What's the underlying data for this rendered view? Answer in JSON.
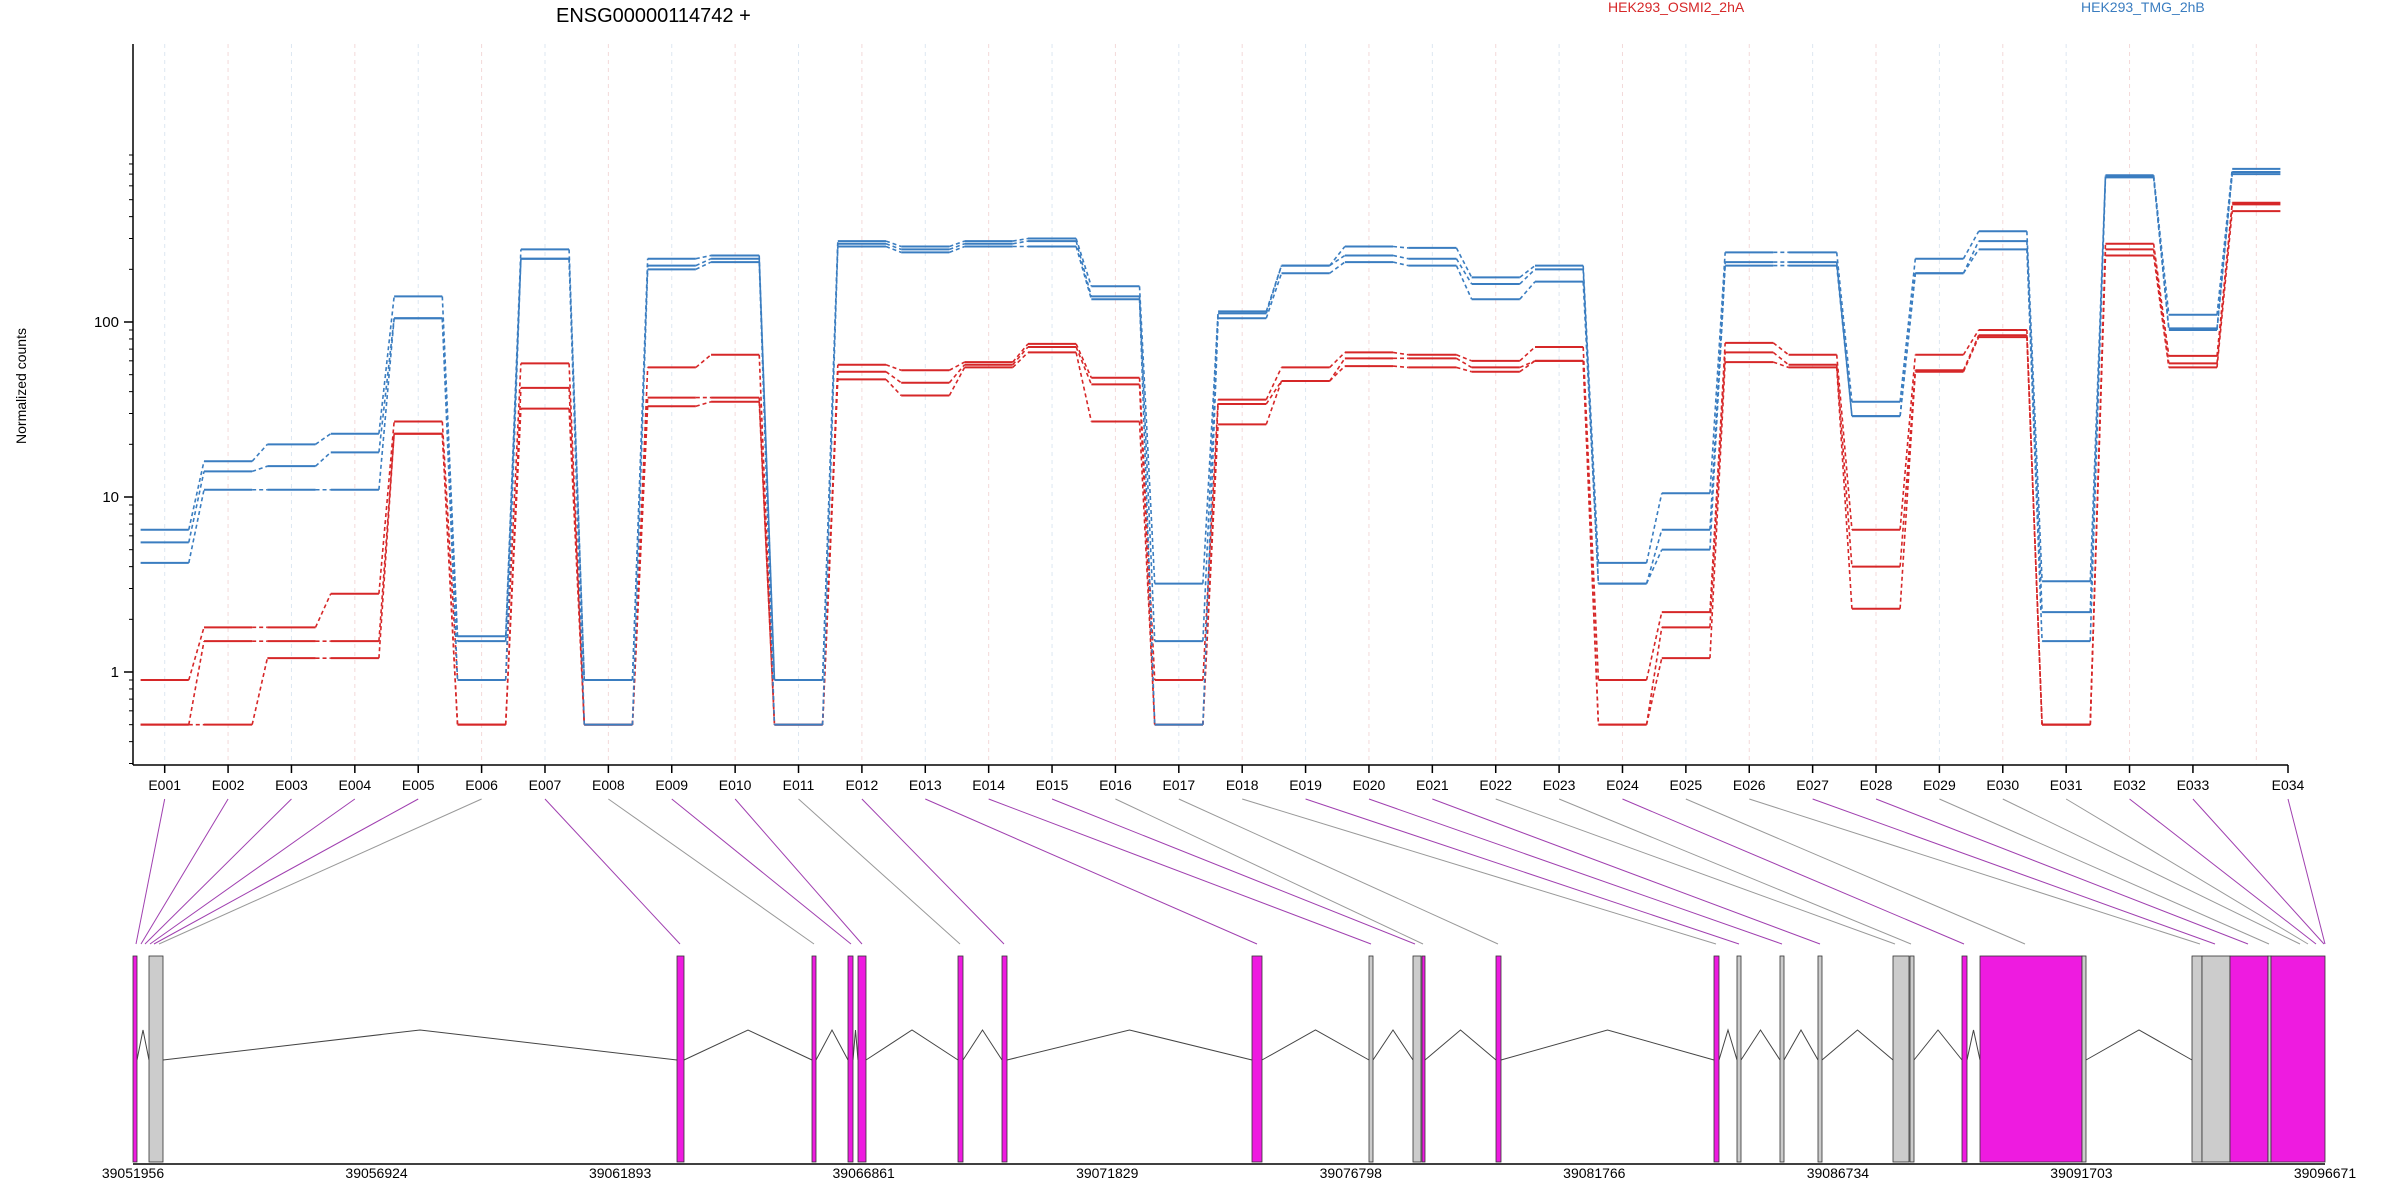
{
  "chart_data": {
    "type": "line",
    "title": "ENSG00000114742 +",
    "ylabel": "Normalized counts",
    "y_scale": "log",
    "y_ticks": [
      {
        "value": 1,
        "label": "1"
      },
      {
        "value": 10,
        "label": "10"
      },
      {
        "value": 100,
        "label": "100"
      }
    ],
    "ylim": [
      0.5,
      1000
    ],
    "categories": [
      "E001",
      "E002",
      "E003",
      "E004",
      "E005",
      "E006",
      "E007",
      "E008",
      "E009",
      "E010",
      "E011",
      "E012",
      "E013",
      "E014",
      "E015",
      "E016",
      "E017",
      "E018",
      "E019",
      "E020",
      "E021",
      "E022",
      "E023",
      "E024",
      "E025",
      "E026",
      "E027",
      "E028",
      "E029",
      "E030",
      "E031",
      "E032",
      "E033",
      "E034"
    ],
    "legend": [
      {
        "name": "HEK293_OSMI2_2hA",
        "color": "#d62728"
      },
      {
        "name": "HEK293_TMG_2hB",
        "color": "#3a7dc0"
      }
    ],
    "series": [
      {
        "group": 0,
        "color": "#d62728",
        "values": [
          0.9,
          1.8,
          1.8,
          2.8,
          27,
          0.9,
          58,
          0.5,
          55,
          65,
          0.5,
          57,
          53,
          59,
          75,
          48,
          0.9,
          36,
          55,
          67,
          65,
          60,
          72,
          0.9,
          2.2,
          76,
          65,
          6.5,
          65,
          90,
          0.5,
          280,
          64,
          470
        ]
      },
      {
        "group": 0,
        "color": "#d62728",
        "values": [
          0.5,
          1.5,
          1.5,
          1.5,
          23,
          0.5,
          42,
          0.5,
          37,
          37,
          0.5,
          52,
          45,
          57,
          72,
          44,
          0.5,
          34,
          46,
          62,
          62,
          55,
          60,
          0.5,
          1.8,
          67,
          57,
          4,
          53,
          84,
          0.5,
          260,
          58,
          480
        ]
      },
      {
        "group": 0,
        "color": "#d62728",
        "values": [
          0.5,
          0.5,
          1.2,
          1.2,
          23,
          0.5,
          32,
          0.5,
          33,
          35,
          0.5,
          47,
          38,
          55,
          67,
          27,
          0.5,
          26,
          46,
          56,
          55,
          52,
          60,
          0.5,
          1.2,
          59,
          55,
          2.3,
          52,
          82,
          0.5,
          240,
          55,
          430
        ]
      },
      {
        "group": 1,
        "color": "#3a7dc0",
        "values": [
          6.5,
          16,
          20,
          23,
          140,
          1.6,
          260,
          0.9,
          230,
          240,
          0.9,
          290,
          270,
          290,
          300,
          160,
          3.2,
          115,
          210,
          270,
          265,
          180,
          210,
          4.2,
          10.5,
          250,
          250,
          35,
          230,
          330,
          3.3,
          690,
          110,
          750
        ]
      },
      {
        "group": 1,
        "color": "#3a7dc0",
        "values": [
          5.5,
          14,
          15,
          18,
          105,
          1.5,
          230,
          0.9,
          210,
          230,
          0.9,
          280,
          260,
          280,
          290,
          140,
          1.5,
          112,
          210,
          240,
          230,
          165,
          200,
          3.2,
          6.5,
          220,
          220,
          29,
          190,
          290,
          2.2,
          680,
          92,
          720
        ]
      },
      {
        "group": 1,
        "color": "#3a7dc0",
        "values": [
          4.2,
          11,
          11,
          11,
          105,
          0.9,
          230,
          0.5,
          200,
          220,
          0.5,
          270,
          250,
          270,
          270,
          135,
          0.5,
          105,
          190,
          220,
          210,
          135,
          170,
          3.2,
          5,
          210,
          210,
          29,
          190,
          260,
          1.5,
          670,
          90,
          700
        ]
      }
    ],
    "genome": {
      "x_ticks": [
        "39051956",
        "39056924",
        "39061893",
        "39066861",
        "39071829",
        "39076798",
        "39081766",
        "39086734",
        "39091703",
        "39096671"
      ],
      "exon_highlight_color": "#ee1be0",
      "exon_other_color": "#cccccc",
      "link_highlight_color": "#a040b0",
      "link_other_color": "#999999"
    }
  }
}
